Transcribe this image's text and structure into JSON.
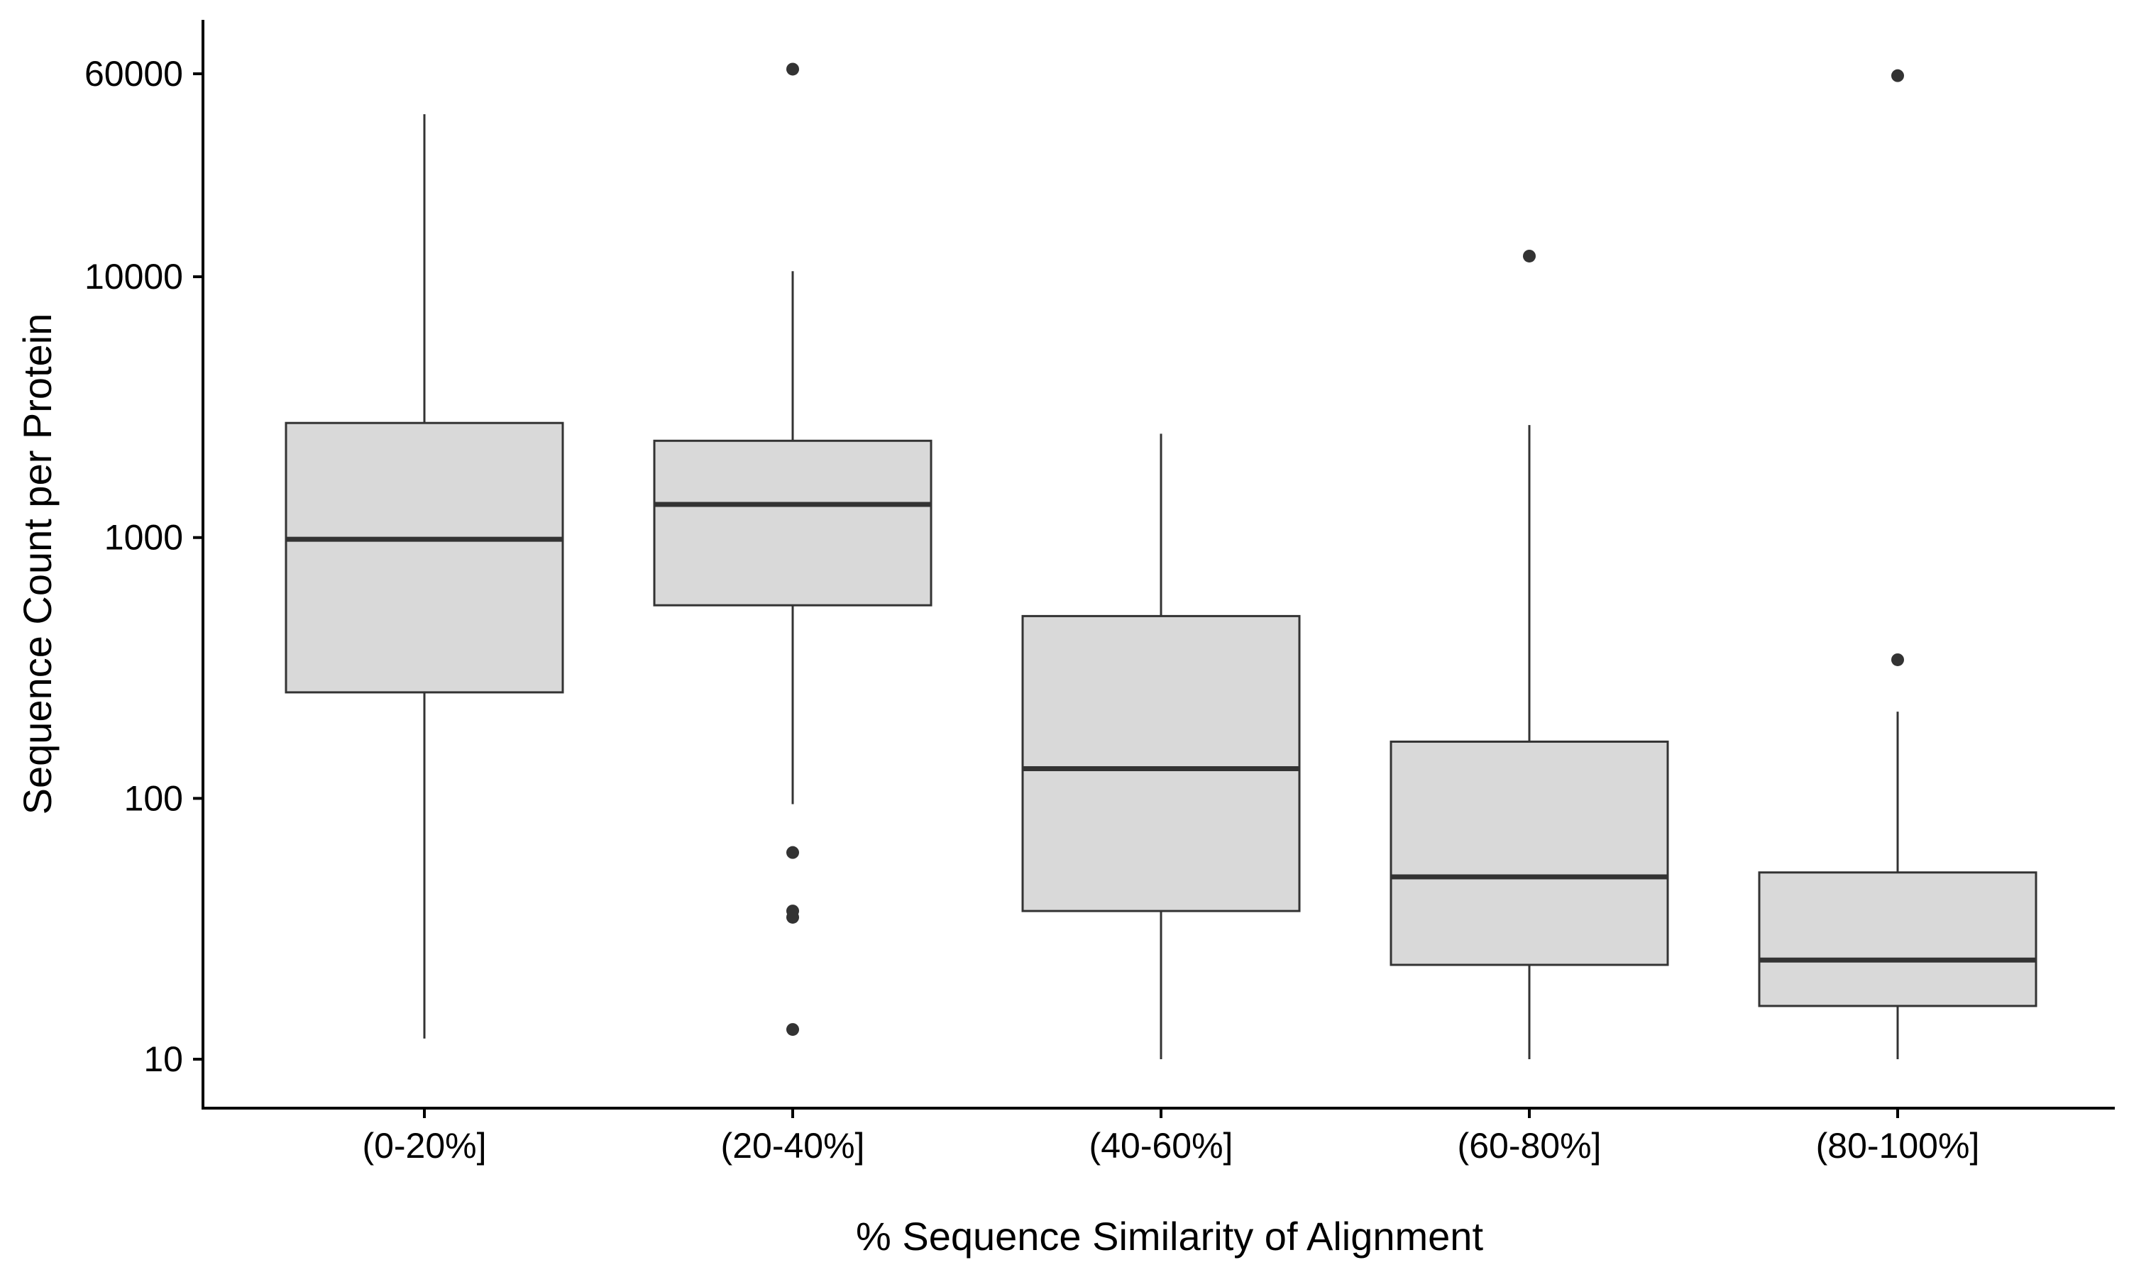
{
  "chart_data": {
    "type": "box",
    "title": "",
    "xlabel": "% Sequence Similarity of Alignment",
    "ylabel": "Sequence Count per Protein",
    "y_scale": "log10",
    "ylim": [
      6.5,
      100000
    ],
    "yticks": [
      10,
      100,
      1000,
      10000,
      60000
    ],
    "ytick_labels": [
      "10",
      "100",
      "1000",
      "10000",
      "60000"
    ],
    "grid": false,
    "legend": "none",
    "colors": {
      "box_fill": "#d9d9d9",
      "line": "#333333",
      "axis": "#000000",
      "outlier": "#333333"
    },
    "categories": [
      "(0-20%]",
      "(20-40%]",
      "(40-60%]",
      "(60-80%]",
      "(80-100%]"
    ],
    "boxes": [
      {
        "whisker_low": 12,
        "q1": 255,
        "median": 985,
        "q3": 2750,
        "whisker_high": 42000,
        "outliers": []
      },
      {
        "whisker_low": 95,
        "q1": 550,
        "median": 1340,
        "q3": 2350,
        "whisker_high": 10500,
        "outliers": [
          13,
          35,
          37,
          62,
          62500
        ]
      },
      {
        "whisker_low": 10,
        "q1": 37,
        "median": 130,
        "q3": 500,
        "whisker_high": 2500,
        "outliers": []
      },
      {
        "whisker_low": 10,
        "q1": 23,
        "median": 50,
        "q3": 165,
        "whisker_high": 2700,
        "outliers": [
          12000
        ]
      },
      {
        "whisker_low": 10,
        "q1": 16,
        "median": 24,
        "q3": 52,
        "whisker_high": 215,
        "outliers": [
          340,
          59000
        ]
      }
    ]
  }
}
